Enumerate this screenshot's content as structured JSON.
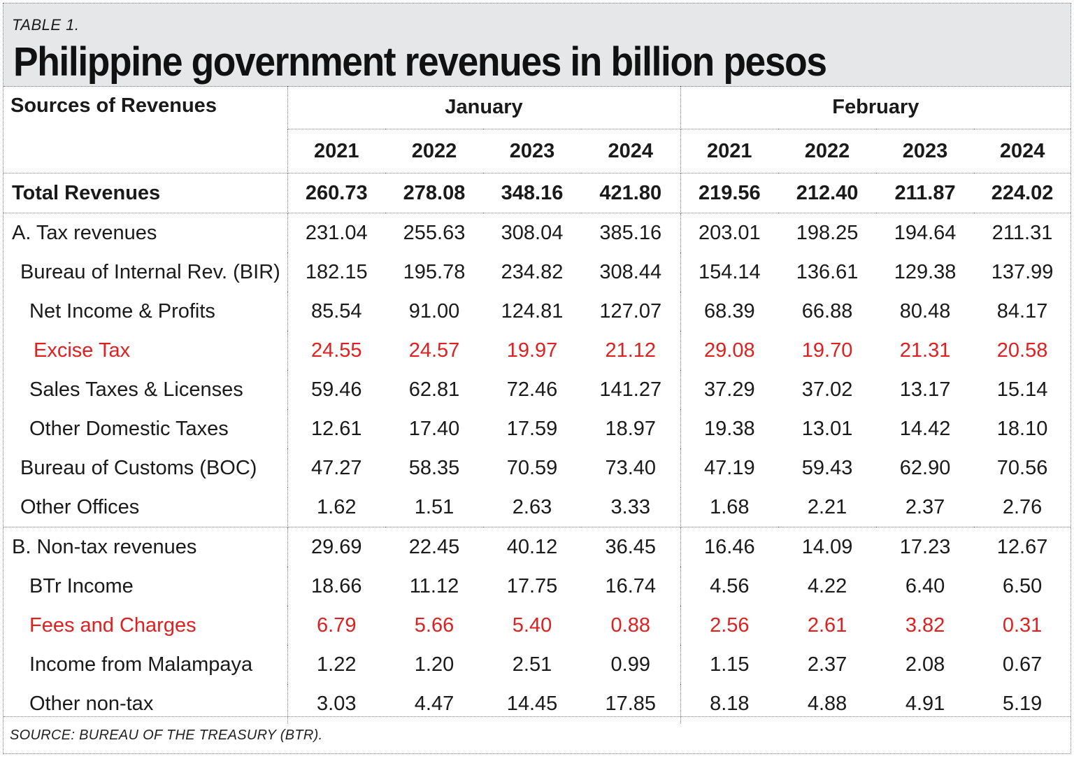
{
  "header": {
    "table_label": "TABLE 1.",
    "title": "Philippine government revenues in billion pesos"
  },
  "table": {
    "source_header": "Sources of Revenues",
    "months": [
      "January",
      "February"
    ],
    "years": [
      "2021",
      "2022",
      "2023",
      "2024",
      "2021",
      "2022",
      "2023",
      "2024"
    ],
    "rows": [
      {
        "label": "Total Revenues",
        "values": [
          "260.73",
          "278.08",
          "348.16",
          "421.80",
          "219.56",
          "212.40",
          "211.87",
          "224.02"
        ]
      },
      {
        "label": "A. Tax revenues",
        "values": [
          "231.04",
          "255.63",
          "308.04",
          "385.16",
          "203.01",
          "198.25",
          "194.64",
          "211.31"
        ]
      },
      {
        "label": "Bureau of Internal Rev. (BIR)",
        "values": [
          "182.15",
          "195.78",
          "234.82",
          "308.44",
          "154.14",
          "136.61",
          "129.38",
          "137.99"
        ]
      },
      {
        "label": "Net Income & Profits",
        "values": [
          "85.54",
          "91.00",
          "124.81",
          "127.07",
          "68.39",
          "66.88",
          "80.48",
          "84.17"
        ]
      },
      {
        "label": "Excise Tax",
        "values": [
          "24.55",
          "24.57",
          "19.97",
          "21.12",
          "29.08",
          "19.70",
          "21.31",
          "20.58"
        ]
      },
      {
        "label": "Sales Taxes & Licenses",
        "values": [
          "59.46",
          "62.81",
          "72.46",
          "141.27",
          "37.29",
          "37.02",
          "13.17",
          "15.14"
        ]
      },
      {
        "label": "Other Domestic Taxes",
        "values": [
          "12.61",
          "17.40",
          "17.59",
          "18.97",
          "19.38",
          "13.01",
          "14.42",
          "18.10"
        ]
      },
      {
        "label": "Bureau of Customs (BOC)",
        "values": [
          "47.27",
          "58.35",
          "70.59",
          "73.40",
          "47.19",
          "59.43",
          "62.90",
          "70.56"
        ]
      },
      {
        "label": "Other Offices",
        "values": [
          "1.62",
          "1.51",
          "2.63",
          "3.33",
          "1.68",
          "2.21",
          "2.37",
          "2.76"
        ]
      },
      {
        "label": "B. Non-tax revenues",
        "values": [
          "29.69",
          "22.45",
          "40.12",
          "36.45",
          "16.46",
          "14.09",
          "17.23",
          "12.67"
        ]
      },
      {
        "label": "BTr Income",
        "values": [
          "18.66",
          "11.12",
          "17.75",
          "16.74",
          "4.56",
          "4.22",
          "6.40",
          "6.50"
        ]
      },
      {
        "label": "Fees and  Charges",
        "values": [
          "6.79",
          "5.66",
          "5.40",
          "0.88",
          "2.56",
          "2.61",
          "3.82",
          "0.31"
        ]
      },
      {
        "label": "Income from Malampaya",
        "values": [
          "1.22",
          "1.20",
          "2.51",
          "0.99",
          "1.15",
          "2.37",
          "2.08",
          "0.67"
        ]
      },
      {
        "label": "Other non-tax",
        "values": [
          "3.03",
          "4.47",
          "14.45",
          "17.85",
          "8.18",
          "4.88",
          "4.91",
          "5.19"
        ]
      }
    ]
  },
  "colors": {
    "highlight": "#e02020",
    "header_bg": "#e6e7e8"
  },
  "footer": {
    "source": "SOURCE: BUREAU OF THE TREASURY (BTR)."
  }
}
